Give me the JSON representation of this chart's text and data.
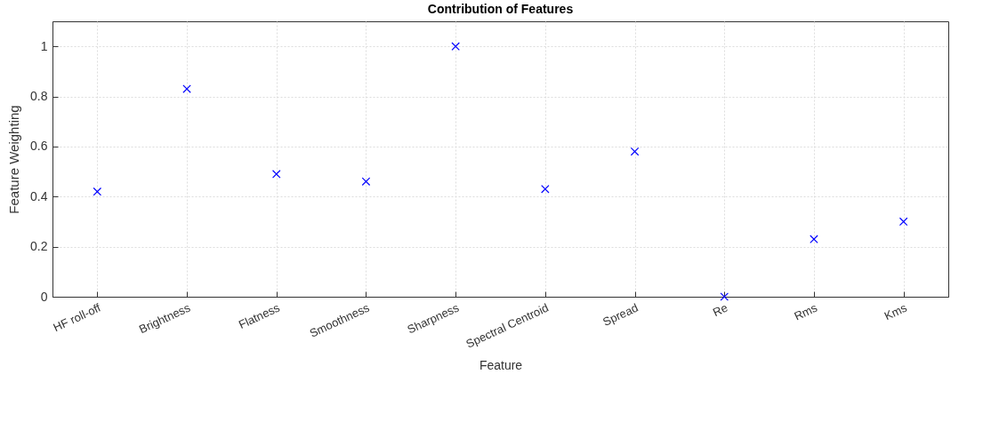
{
  "chart_data": {
    "type": "scatter",
    "title": "Contribution of Features",
    "xlabel": "Feature",
    "ylabel": "Feature Weighting",
    "categories": [
      "HF roll-off",
      "Brightness",
      "Flatness",
      "Smoothness",
      "Sharpness",
      "Spectral Centroid",
      "Spread",
      "Re",
      "Rms",
      "Kms"
    ],
    "series": [
      {
        "color": "#0000ff",
        "values": [
          0.42,
          0.83,
          0.49,
          0.46,
          1.0,
          0.43,
          0.58,
          0.0,
          0.23,
          0.3
        ]
      }
    ],
    "ylim": [
      0,
      1.1
    ],
    "yticks": [
      0,
      0.2,
      0.4,
      0.6,
      0.8,
      1
    ],
    "grid": true,
    "marker": "cross",
    "legend": false
  }
}
